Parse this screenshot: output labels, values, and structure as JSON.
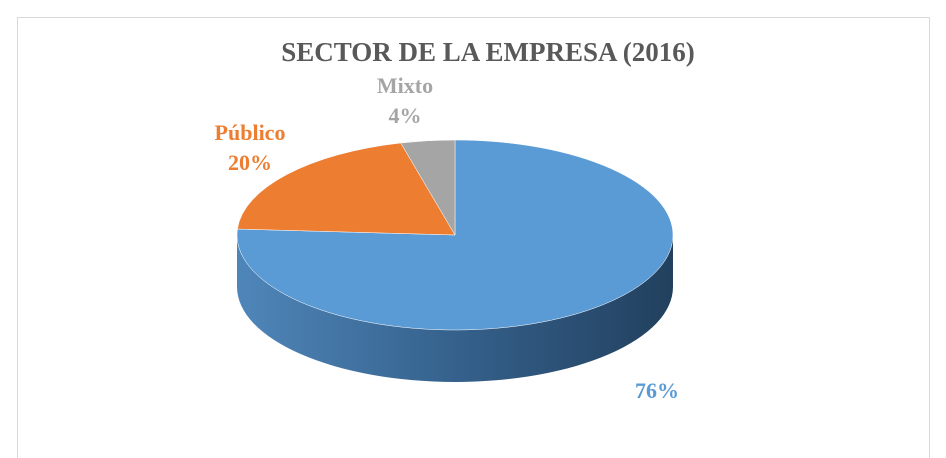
{
  "chart_data": {
    "type": "pie",
    "title": "SECTOR DE LA EMPRESA (2016)",
    "categories": [
      null,
      "Público",
      "Mixto"
    ],
    "values": [
      76,
      20,
      4
    ],
    "value_labels": [
      "76%",
      "20%",
      "4%"
    ],
    "colors": [
      "#5b9bd5",
      "#ed7d31",
      "#a5a5a5"
    ],
    "three_d": true
  }
}
